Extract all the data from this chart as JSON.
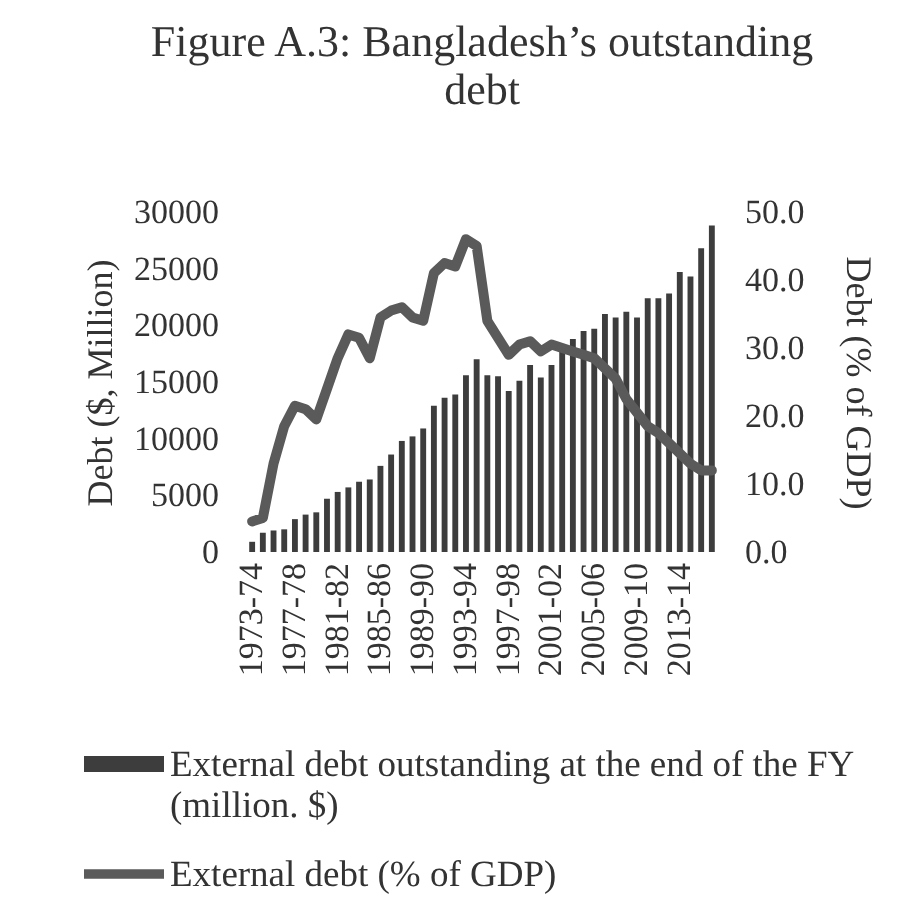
{
  "chart_data": {
    "type": "bar",
    "title": "Figure A.3: Bangladesh’s outstanding debt",
    "ylabel": "Debt ($, Million)",
    "y2label": "Debt (% of GDP)",
    "categories": [
      "1973-74",
      null,
      null,
      null,
      "1977-78",
      null,
      null,
      null,
      "1981-82",
      null,
      null,
      null,
      "1985-86",
      null,
      null,
      null,
      "1989-90",
      null,
      null,
      null,
      "1993-94",
      null,
      null,
      null,
      "1997-98",
      null,
      null,
      null,
      "2001-02",
      null,
      null,
      null,
      "2005-06",
      null,
      null,
      null,
      "2009-10",
      null,
      null,
      null,
      "2013-14",
      null,
      null,
      null
    ],
    "series": [
      {
        "name": "External debt outstanding at the end of the FY (million. $)",
        "color": "#3d3d3d",
        "values": [
          900,
          1700,
          1900,
          2000,
          2900,
          3300,
          3500,
          4700,
          5300,
          5700,
          6200,
          6400,
          7600,
          8600,
          9800,
          10200,
          10900,
          12900,
          13600,
          13900,
          15600,
          17000,
          15600,
          15500,
          14200,
          15100,
          16500,
          15400,
          16500,
          18200,
          18800,
          19500,
          19700,
          21000,
          20700,
          21200,
          20700,
          22400,
          22400,
          22800,
          24700,
          24300,
          26800,
          28800
        ]
      },
      {
        "name": "External debt (% of GDP)",
        "type": "line",
        "axis": "y2",
        "color": "#5a5a5a",
        "values": [
          4.5,
          5.0,
          13.0,
          18.5,
          21.5,
          21.0,
          19.5,
          24.0,
          28.5,
          32.0,
          31.5,
          28.5,
          34.5,
          35.5,
          36.0,
          34.5,
          34.0,
          41.0,
          42.5,
          42.0,
          46.0,
          45.0,
          34.0,
          31.5,
          29.0,
          30.5,
          31.0,
          29.5,
          30.5,
          30.0,
          29.5,
          29.0,
          28.5,
          27.0,
          25.5,
          22.5,
          20.5,
          18.5,
          17.5,
          16.0,
          14.5,
          13.0,
          12.0,
          12.0
        ]
      }
    ],
    "ylim": [
      0,
      30000
    ],
    "yticks": [
      0,
      5000,
      10000,
      15000,
      20000,
      25000,
      30000
    ],
    "y2lim": [
      0,
      50
    ],
    "y2ticks": [
      {
        "value": 0,
        "label": "0.0"
      },
      {
        "value": 10,
        "label": "10.0"
      },
      {
        "value": 20,
        "label": "20.0"
      },
      {
        "value": 30,
        "label": "30.0"
      },
      {
        "value": 40,
        "label": "40.0"
      },
      {
        "value": 50,
        "label": "50.0"
      }
    ],
    "legend": "bottom"
  }
}
